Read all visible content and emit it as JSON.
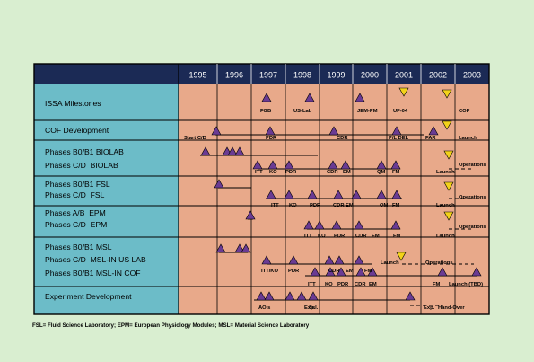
{
  "years": [
    "1995",
    "1996",
    "1997",
    "1998",
    "1999",
    "2000",
    "2001",
    "2002",
    "2003"
  ],
  "rows": [
    {
      "lines": [
        "ISSA Milestones"
      ]
    },
    {
      "lines": [
        "COF Development"
      ]
    },
    {
      "lines": [
        "Phases B0/B1 BIOLAB",
        "Phases C/D  BIOLAB"
      ]
    },
    {
      "lines": [
        "Phases B0/B1 FSL",
        "Phases C/D  FSL"
      ]
    },
    {
      "lines": [
        "Phases A/B  EPM",
        "Phases C/D  EPM"
      ]
    },
    {
      "lines": [
        "Phases B0/B1 MSL",
        "Phases C/D  MSL-IN US LAB",
        "Phases B0/B1 MSL-IN COF"
      ]
    },
    {
      "lines": [
        "Experiment Development"
      ]
    }
  ],
  "milestone_labels": {
    "issa": [
      "FGB",
      "US-Lab",
      "JEM-PM",
      "UF-04",
      "COF"
    ],
    "cof": [
      "Start C/D",
      "PDR",
      "CDR",
      "P/L DEL",
      "FAR",
      "Launch"
    ],
    "biolab": [
      "ITT",
      "KO",
      "PDR",
      "CDR",
      "EM",
      "QM",
      "FM",
      "Launch",
      "Operations"
    ],
    "fsl": [
      "ITT",
      "KO",
      "PDR",
      "CDR",
      "EM",
      "QM",
      "FM",
      "Launch",
      "Operations"
    ],
    "epm": [
      "ITT",
      "KO",
      "PDR",
      "CDR",
      "EM",
      "FM",
      "Launch",
      "Operations"
    ],
    "msl": [
      "ITT/KO",
      "PDR",
      "CDR",
      "EM",
      "FM",
      "Launch",
      "Operations",
      "ITT",
      "KO",
      "PDR",
      "CDR",
      "EM",
      "FM",
      "Launch (TBD)"
    ],
    "exp": [
      "AO's",
      "Sel.",
      "Exp.",
      "Sel.",
      "Exp.",
      "Hand-Over"
    ]
  },
  "footnote": "FSL= Fluid Science Laboratory; EPM= European Physiology Modules; MSL= Material Science Laboratory",
  "colors": {
    "background": "#d9eed0",
    "left_panel": "#6cbcc8",
    "grid_area": "#e8a98a",
    "header": "#1b2a55",
    "completed_marker": "#6a3b93",
    "planned_marker": "#f2d21a"
  }
}
